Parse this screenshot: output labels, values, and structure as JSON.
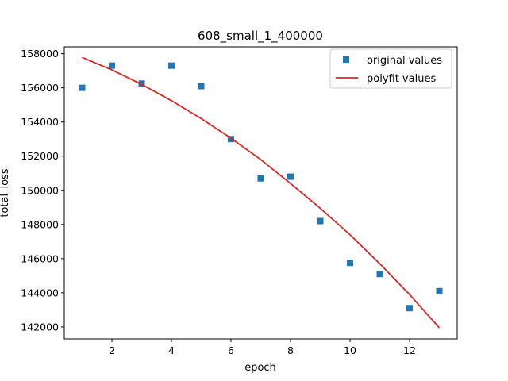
{
  "chart_data": {
    "type": "scatter",
    "title": "608_small_1_400000",
    "xlabel": "epoch",
    "ylabel": "total_loss",
    "xlim": [
      0.4,
      13.6
    ],
    "ylim": [
      141300,
      158400
    ],
    "x_ticks": [
      2,
      4,
      6,
      8,
      10,
      12
    ],
    "x_tick_labels": [
      "2",
      "4",
      "6",
      "8",
      "10",
      "12"
    ],
    "y_ticks": [
      142000,
      144000,
      146000,
      148000,
      150000,
      152000,
      154000,
      156000,
      158000
    ],
    "y_tick_labels": [
      "142000",
      "144000",
      "146000",
      "148000",
      "150000",
      "152000",
      "154000",
      "156000",
      "158000"
    ],
    "grid": false,
    "legend_position": "top-right",
    "series": [
      {
        "name": "original values",
        "kind": "scatter",
        "marker": "square",
        "color": "#1f77b4",
        "x": [
          1,
          2,
          3,
          4,
          5,
          6,
          7,
          8,
          9,
          10,
          11,
          12,
          13
        ],
        "y": [
          156000,
          157300,
          156250,
          157300,
          156100,
          153000,
          150700,
          150800,
          148200,
          145750,
          145100,
          143100,
          144100
        ]
      },
      {
        "name": "polyfit values",
        "kind": "line",
        "color": "#d62728",
        "x": [
          1,
          2,
          3,
          4,
          5,
          6,
          7,
          8,
          9,
          10,
          11,
          12,
          13
        ],
        "y": [
          157780,
          157050,
          156200,
          155250,
          154200,
          153050,
          151800,
          150400,
          148950,
          147400,
          145700,
          143900,
          141950
        ]
      }
    ]
  }
}
